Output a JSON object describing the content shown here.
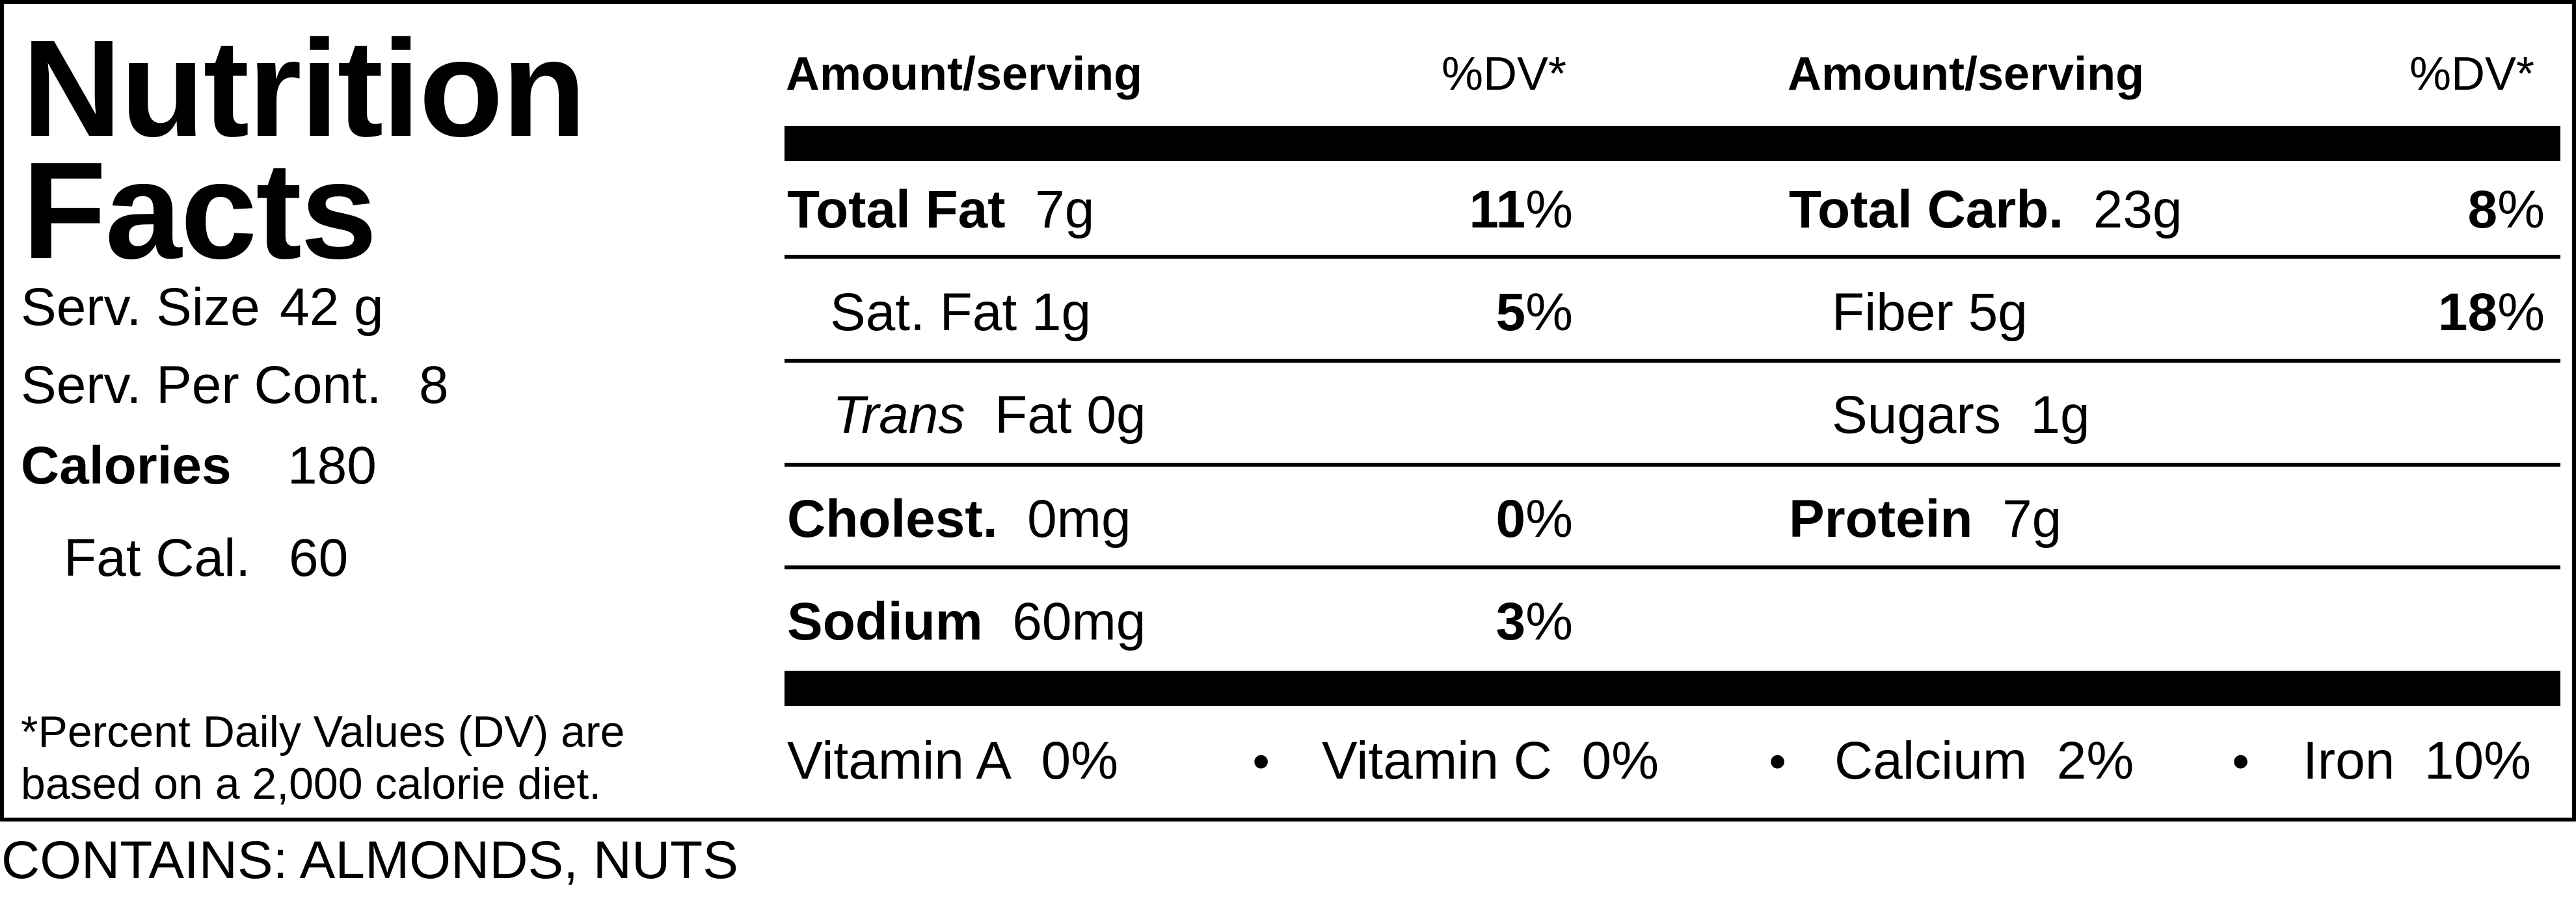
{
  "title": {
    "line1": "Nutrition",
    "line2": "Facts"
  },
  "serving": {
    "size_label": "Serv. Size",
    "size_value": "42  g",
    "per_cont_label": "Serv. Per Cont.",
    "per_cont_value": "8",
    "calories_label": "Calories",
    "calories_value": "180",
    "fat_cal_label": "Fat Cal.",
    "fat_cal_value": "60"
  },
  "footnote": {
    "line1": "*Percent Daily Values (DV) are",
    "line2": "based on a 2,000 calorie diet."
  },
  "headers": {
    "amount": "Amount/serving",
    "dv": "%DV*"
  },
  "left_column": [
    {
      "label": "Total Fat",
      "amount": "7g",
      "dv": "11",
      "pct": "%"
    },
    {
      "label": "Sat. Fat",
      "amount": "1g",
      "dv": "5",
      "pct": "%"
    },
    {
      "label": "Trans",
      "amount": "Fat 0g"
    },
    {
      "label": "Cholest.",
      "amount": "0mg",
      "dv": "0",
      "pct": "%"
    },
    {
      "label": "Sodium",
      "amount": "60mg",
      "dv": "3",
      "pct": "%"
    }
  ],
  "right_column": [
    {
      "label": "Total Carb.",
      "amount": "23g",
      "dv": "8",
      "pct": "%"
    },
    {
      "label": "Fiber",
      "amount": "5g",
      "dv": "18",
      "pct": "%"
    },
    {
      "label": "Sugars",
      "amount": "1g"
    },
    {
      "label": "Protein",
      "amount": "7g"
    }
  ],
  "vitamins": [
    {
      "name": "Vitamin A",
      "value": "0%"
    },
    {
      "name": "Vitamin C",
      "value": "0%"
    },
    {
      "name": "Calcium",
      "value": "2%"
    },
    {
      "name": "Iron",
      "value": "10%"
    }
  ],
  "bullet": "•",
  "contains": "CONTAINS: ALMONDS, NUTS"
}
